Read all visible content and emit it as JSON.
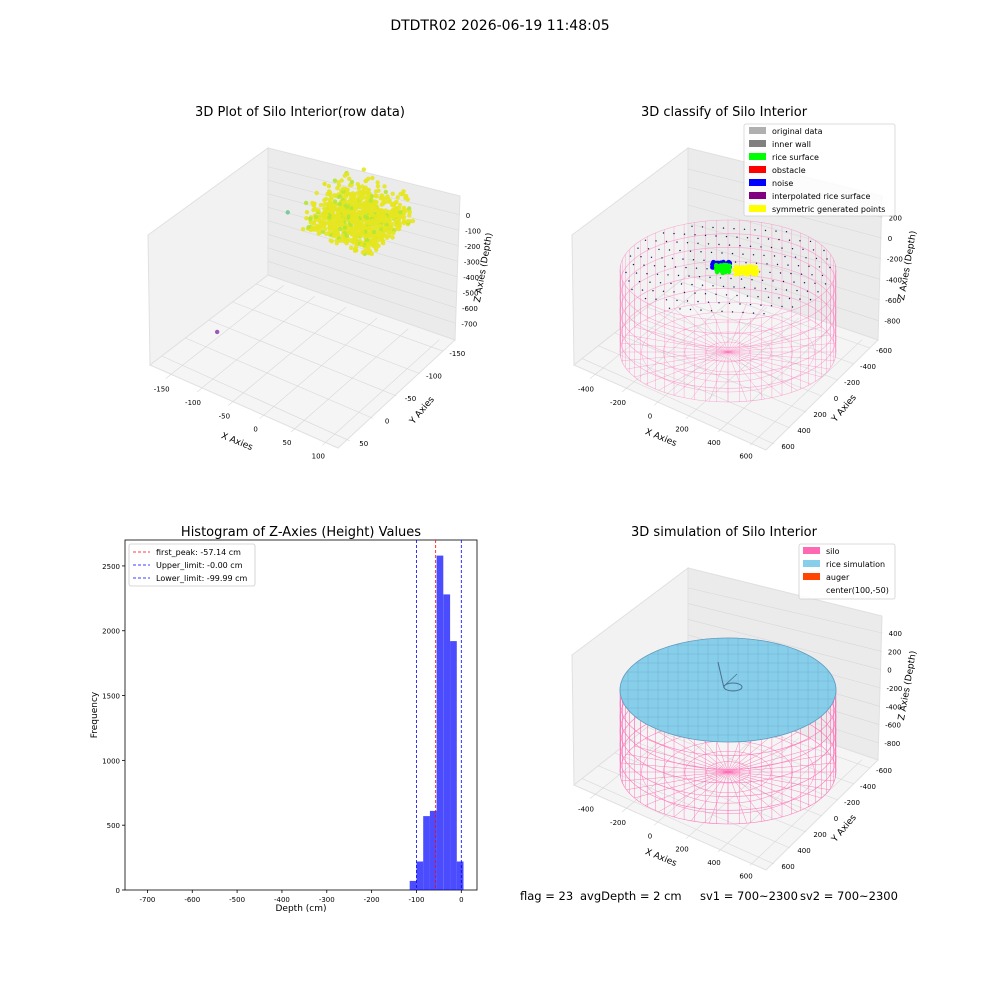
{
  "figure": {
    "suptitle": "DTDTR02 2026-06-19 11:48:05",
    "footer": {
      "flag": "flag = 23",
      "avg_depth": "avgDepth = 2 cm",
      "sv1": "sv1 = 700~2300",
      "sv2": "sv2 = 700~2300"
    }
  },
  "colors": {
    "silo": "#ff69b4",
    "rice_simulation": "#87ceeb",
    "auger": "#ff4500",
    "hist_bar": "#0000ff",
    "raw_points": "#e6e620",
    "rice_surface": "#00ff00",
    "noise": "#0000ff",
    "symmetric": "#ffff00"
  },
  "chart_data": [
    {
      "type": "scatter",
      "subtype": "3d",
      "title": "3D Plot of Silo Interior(row data)",
      "xlabel": "X Axies",
      "ylabel": "Y Axies",
      "zlabel": "Z Axies (Depth)",
      "xticks": [
        "-150",
        "-100",
        "-50",
        "0",
        "50",
        "100"
      ],
      "yticks": [
        "50",
        "0",
        "-50",
        "-100",
        "-150"
      ],
      "zticks": [
        "0",
        "-100",
        "-200",
        "-300",
        "-400",
        "-500",
        "-600",
        "-700"
      ],
      "xlim": [
        -160,
        105
      ],
      "ylim": [
        -170,
        75
      ],
      "zlim": [
        -740,
        20
      ],
      "series": [
        {
          "cluster": {
            "x": [
              -40,
              55
            ],
            "y": [
              -30,
              60
            ],
            "z": [
              -190,
              -10
            ]
          },
          "count": 2600
        },
        {
          "outliers": [
            {
              "x": -140,
              "y": -60,
              "z": -720,
              "color": "#9b59b6"
            },
            {
              "x": -105,
              "y": 35,
              "z": -300,
              "color": "#7ec8a0"
            },
            {
              "x": -70,
              "y": 60,
              "z": -170,
              "color": "#e6e620"
            }
          ]
        }
      ]
    },
    {
      "type": "scatter",
      "subtype": "3d",
      "title": "3D classify of Silo Interior",
      "xlabel": "X Axies",
      "ylabel": "Y Axies",
      "zlabel": "Z Axies (Depth)",
      "xticks": [
        "-400",
        "-200",
        "0",
        "200",
        "400",
        "600"
      ],
      "yticks": [
        "600",
        "400",
        "200",
        "0",
        "-200",
        "-400",
        "-600"
      ],
      "zticks": [
        "200",
        "0",
        "-200",
        "-400",
        "-600",
        "-800"
      ],
      "legend": [
        {
          "label": "original data",
          "color": "#b0b0b0"
        },
        {
          "label": "inner wall",
          "color": "#808080"
        },
        {
          "label": "rice surface",
          "color": "#00ff00"
        },
        {
          "label": "obstacle",
          "color": "#ff0000"
        },
        {
          "label": "noise",
          "color": "#0000ff"
        },
        {
          "label": "interpolated rice surface",
          "color": "#800080"
        },
        {
          "label": "symmetric generated points",
          "color": "#ffff00"
        }
      ],
      "legend_loc": "upper right"
    },
    {
      "type": "bar",
      "subtype": "histogram",
      "title": "Histogram of Z-Axies (Height) Values",
      "xlabel": "Depth (cm)",
      "ylabel": "Frequency",
      "xlim": [
        -750,
        35
      ],
      "ylim": [
        0,
        2700
      ],
      "xticks": [
        "-700",
        "-600",
        "-500",
        "-400",
        "-300",
        "-200",
        "-100",
        "0"
      ],
      "yticks": [
        "0",
        "500",
        "1000",
        "1500",
        "2000",
        "2500"
      ],
      "bins": [
        {
          "from": -115,
          "to": -100,
          "count": 70
        },
        {
          "from": -100,
          "to": -85,
          "count": 220
        },
        {
          "from": -85,
          "to": -70,
          "count": 570
        },
        {
          "from": -70,
          "to": -55,
          "count": 610
        },
        {
          "from": -55,
          "to": -40,
          "count": 2580
        },
        {
          "from": -40,
          "to": -25,
          "count": 2280
        },
        {
          "from": -25,
          "to": -10,
          "count": 1920
        },
        {
          "from": -10,
          "to": 5,
          "count": 220
        }
      ],
      "lines": [
        {
          "label": "first_peak: -57.14 cm",
          "value": -57.14,
          "color": "#ff0000"
        },
        {
          "label": "Upper_limit: -0.00 cm",
          "value": 0.0,
          "color": "#0000ff"
        },
        {
          "label": "Lower_limit: -99.99 cm",
          "value": -99.99,
          "color": "#0000ff"
        }
      ]
    },
    {
      "type": "scatter",
      "subtype": "3d",
      "title": "3D simulation of Silo Interior",
      "xlabel": "X Axies",
      "ylabel": "Y Axies",
      "zlabel": "Z Axies (Depth)",
      "xticks": [
        "-400",
        "-200",
        "0",
        "200",
        "400",
        "600"
      ],
      "yticks": [
        "600",
        "400",
        "200",
        "0",
        "-200",
        "-400",
        "-600"
      ],
      "zticks": [
        "400",
        "200",
        "0",
        "-200",
        "-400",
        "-600",
        "-800"
      ],
      "legend": [
        {
          "label": "silo",
          "color": "#ff69b4"
        },
        {
          "label": "rice simulation",
          "color": "#87ceeb"
        },
        {
          "label": "auger",
          "color": "#ff4500"
        },
        {
          "label": "center(100,-50)",
          "color": ""
        }
      ],
      "legend_loc": "upper right"
    }
  ]
}
